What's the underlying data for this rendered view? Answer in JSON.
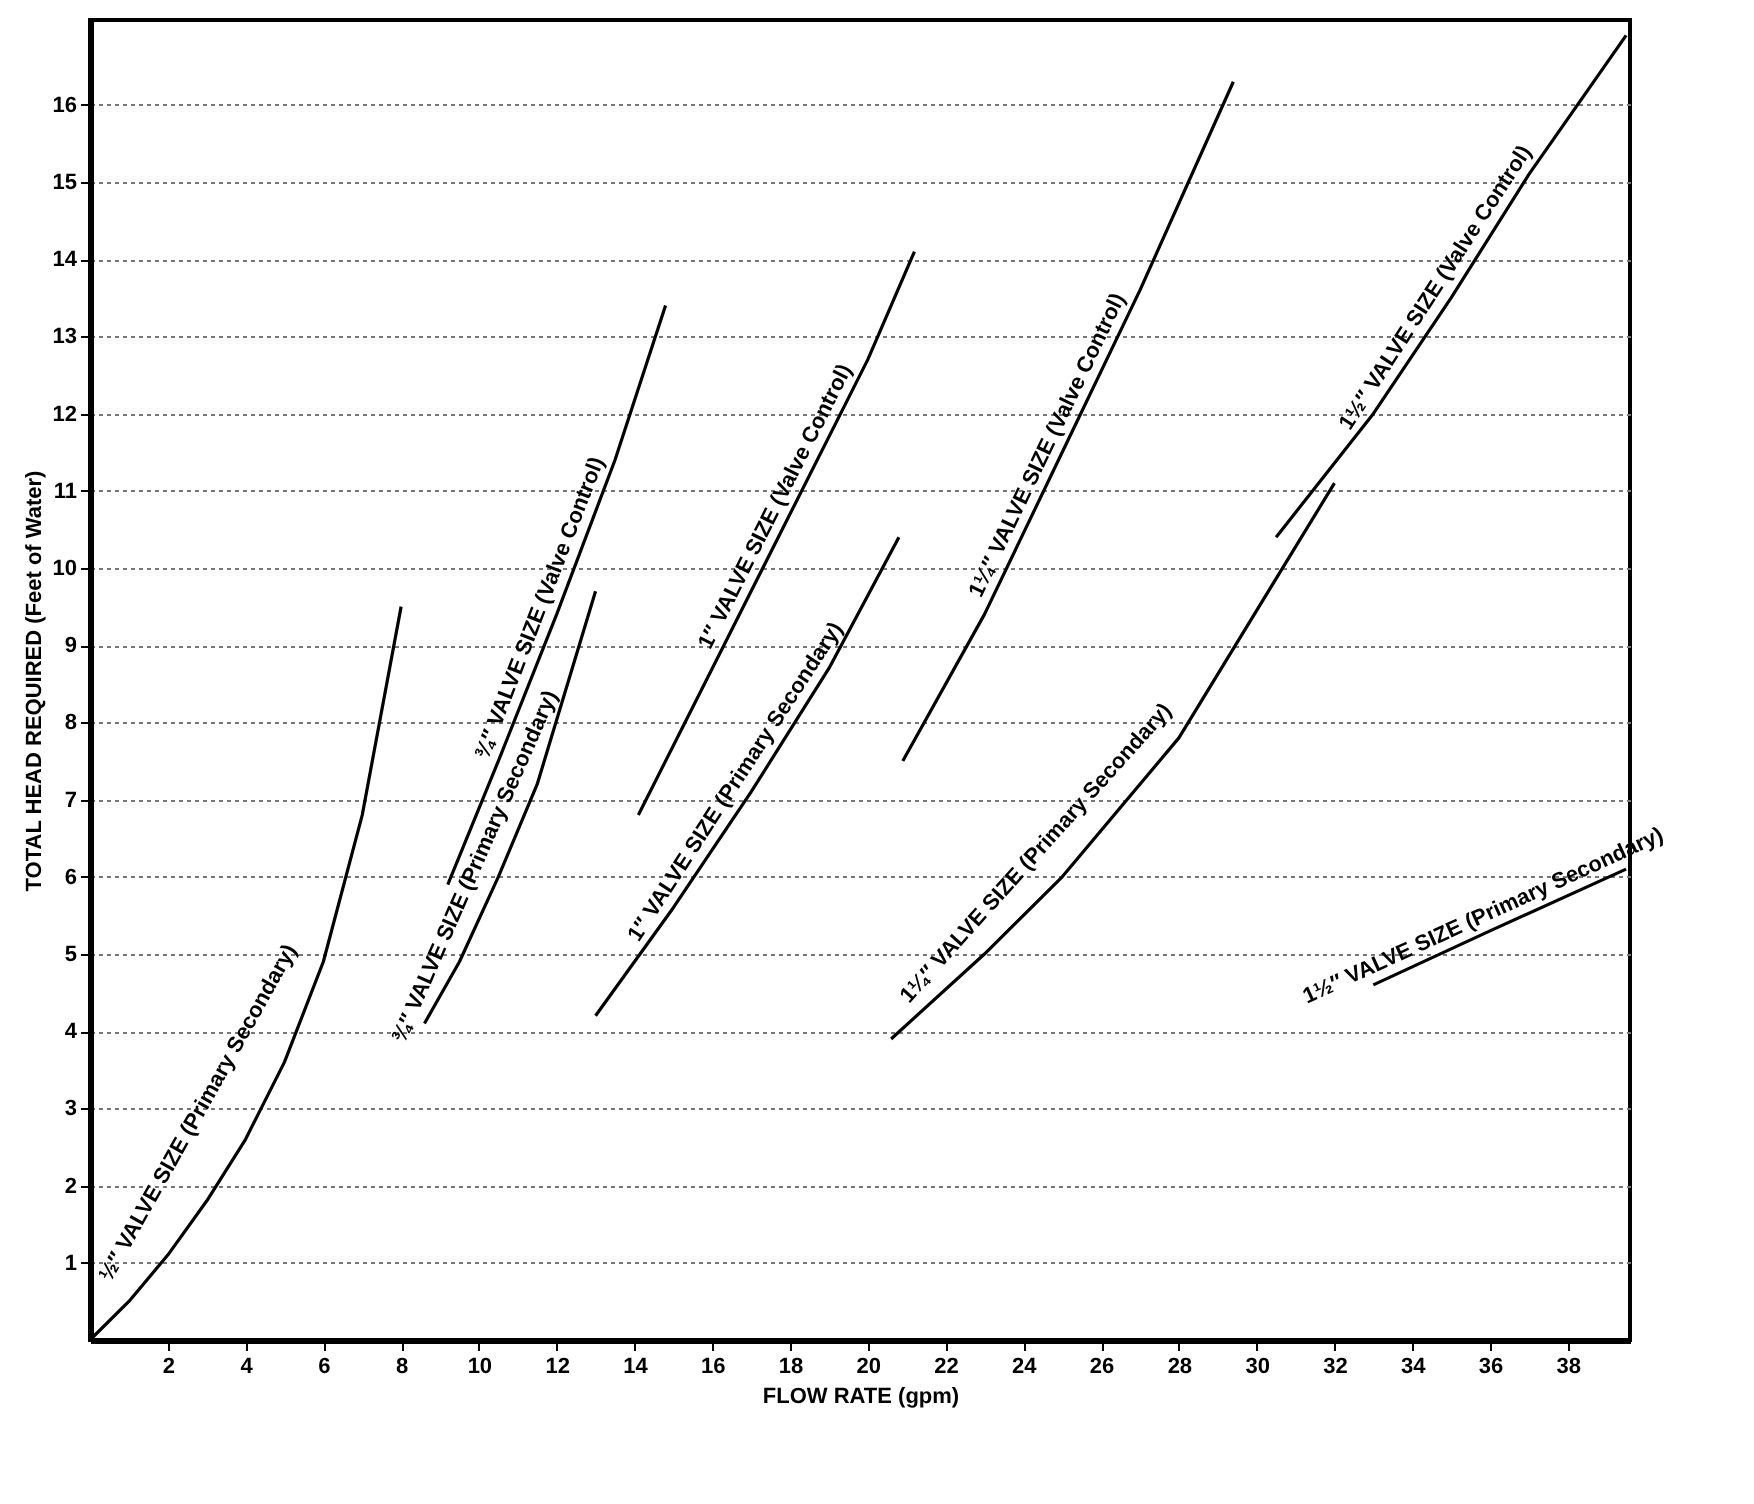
{
  "chart_data": {
    "type": "line",
    "xlabel": "FLOW RATE (gpm)",
    "ylabel": "TOTAL HEAD REQUIRED (Feet of Water)",
    "xlim": [
      0,
      39.6
    ],
    "ylim": [
      0,
      17.1
    ],
    "xticks": [
      2,
      4,
      6,
      8,
      10,
      12,
      14,
      16,
      18,
      20,
      22,
      24,
      26,
      28,
      30,
      32,
      34,
      36,
      38
    ],
    "yticks": [
      1,
      2,
      3,
      4,
      5,
      6,
      7,
      8,
      9,
      10,
      11,
      12,
      13,
      14,
      15,
      16
    ],
    "grid": "y",
    "legend": false,
    "marker": "none",
    "line_style": "solid",
    "series": [
      {
        "name": "½″ VALVE SIZE (Primary Secondary)",
        "color": "#000000",
        "x": [
          0,
          1,
          2,
          3,
          4,
          5,
          6,
          7,
          8
        ],
        "values": [
          0,
          0.5,
          1.1,
          1.8,
          2.6,
          3.6,
          4.9,
          6.8,
          9.5
        ]
      },
      {
        "name": "¾″ VALVE SIZE (Valve Control)",
        "color": "#000000",
        "x": [
          9.2,
          10.5,
          12,
          13.5,
          14.8
        ],
        "values": [
          5.9,
          7.5,
          9.4,
          11.4,
          13.4
        ]
      },
      {
        "name": "¾″ VALVE SIZE (Primary Secondary)",
        "color": "#000000",
        "x": [
          8.6,
          9.5,
          10.5,
          11.5,
          13
        ],
        "values": [
          4.1,
          4.9,
          6.0,
          7.2,
          9.7
        ]
      },
      {
        "name": "1″ VALVE SIZE (Valve Control)",
        "color": "#000000",
        "x": [
          14.1,
          16,
          18,
          20,
          21.2
        ],
        "values": [
          6.8,
          8.7,
          10.7,
          12.7,
          14.1
        ]
      },
      {
        "name": "1″ VALVE SIZE (Primary Secondary)",
        "color": "#000000",
        "x": [
          13,
          15,
          17,
          19,
          20.8
        ],
        "values": [
          4.2,
          5.6,
          7.1,
          8.7,
          10.4
        ]
      },
      {
        "name": "1¼″ VALVE SIZE (Valve Control)",
        "color": "#000000",
        "x": [
          20.9,
          23,
          25,
          27,
          29.4
        ],
        "values": [
          7.5,
          9.4,
          11.5,
          13.6,
          16.3
        ]
      },
      {
        "name": "1¼″ VALVE SIZE (Primary Secondary)",
        "color": "#000000",
        "x": [
          20.6,
          23,
          25,
          28,
          32
        ],
        "values": [
          3.9,
          5.0,
          6.0,
          7.8,
          11.1
        ]
      },
      {
        "name": "1½″ VALVE SIZE (Valve Control)",
        "color": "#000000",
        "x": [
          30.5,
          33,
          35,
          37,
          39.5
        ],
        "values": [
          10.4,
          12.0,
          13.5,
          15.1,
          16.9
        ]
      },
      {
        "name": "1½″ VALVE SIZE (Primary Secondary)",
        "color": "#000000",
        "x": [
          33,
          36,
          39.5
        ],
        "values": [
          4.6,
          5.3,
          6.1
        ]
      }
    ]
  }
}
